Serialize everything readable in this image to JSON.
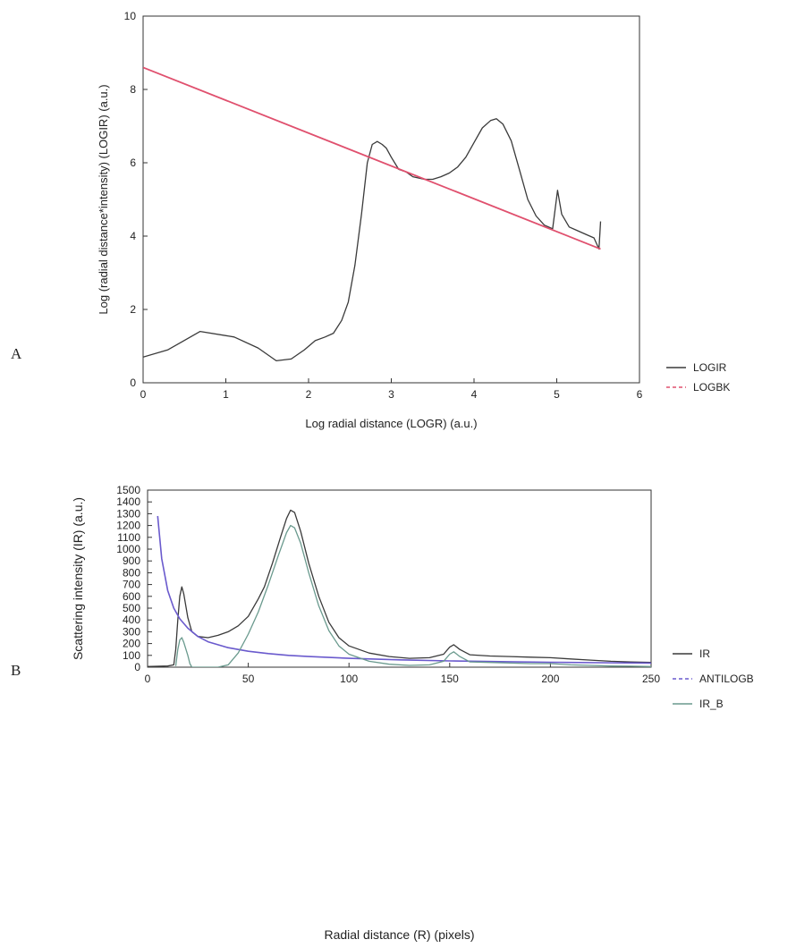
{
  "panels": {
    "a_letter": "A",
    "b_letter": "B"
  },
  "chart_data": [
    {
      "type": "line",
      "xlabel": "Log radial distance (LOGR) (a.u.)",
      "ylabel": "Log (radial distance*intensity) (LOGIR) (a.u.)",
      "xlim": [
        0,
        6
      ],
      "ylim": [
        0,
        10
      ],
      "xticks": [
        0,
        1,
        2,
        3,
        4,
        5,
        6
      ],
      "yticks": [
        0,
        2,
        4,
        6,
        8,
        10
      ],
      "grid": false,
      "legend_position": "right-bottom outside",
      "series": [
        {
          "name": "LOGIR",
          "color": "#3a3a3a",
          "style": "solid",
          "points": [
            [
              0,
              0.7
            ],
            [
              0.3,
              0.9
            ],
            [
              0.69,
              1.4
            ],
            [
              1.1,
              1.25
            ],
            [
              1.39,
              0.95
            ],
            [
              1.61,
              0.6
            ],
            [
              1.79,
              0.65
            ],
            [
              1.95,
              0.9
            ],
            [
              2.08,
              1.15
            ],
            [
              2.2,
              1.25
            ],
            [
              2.3,
              1.35
            ],
            [
              2.4,
              1.7
            ],
            [
              2.48,
              2.2
            ],
            [
              2.56,
              3.2
            ],
            [
              2.64,
              4.6
            ],
            [
              2.71,
              6.0
            ],
            [
              2.77,
              6.5
            ],
            [
              2.83,
              6.58
            ],
            [
              2.89,
              6.5
            ],
            [
              2.94,
              6.4
            ],
            [
              3.0,
              6.15
            ],
            [
              3.09,
              5.82
            ],
            [
              3.18,
              5.75
            ],
            [
              3.26,
              5.62
            ],
            [
              3.4,
              5.55
            ],
            [
              3.5,
              5.55
            ],
            [
              3.6,
              5.62
            ],
            [
              3.7,
              5.72
            ],
            [
              3.8,
              5.88
            ],
            [
              3.9,
              6.15
            ],
            [
              4.0,
              6.55
            ],
            [
              4.1,
              6.95
            ],
            [
              4.2,
              7.15
            ],
            [
              4.27,
              7.2
            ],
            [
              4.35,
              7.05
            ],
            [
              4.45,
              6.6
            ],
            [
              4.55,
              5.8
            ],
            [
              4.65,
              5.0
            ],
            [
              4.75,
              4.55
            ],
            [
              4.85,
              4.3
            ],
            [
              4.95,
              4.2
            ],
            [
              5.01,
              5.25
            ],
            [
              5.06,
              4.6
            ],
            [
              5.15,
              4.25
            ],
            [
              5.25,
              4.15
            ],
            [
              5.35,
              4.05
            ],
            [
              5.45,
              3.95
            ],
            [
              5.51,
              3.65
            ],
            [
              5.53,
              4.4
            ]
          ]
        },
        {
          "name": "LOGBK",
          "color": "#e0506e",
          "style": "dashed",
          "points": [
            [
              0,
              8.6
            ],
            [
              5.53,
              3.65
            ]
          ]
        }
      ]
    },
    {
      "type": "line",
      "xlabel": "Radial distance (R) (pixels)",
      "ylabel": "Scattering intensity (IR) (a.u.)",
      "xlim": [
        0,
        250
      ],
      "ylim": [
        0,
        1500
      ],
      "xticks": [
        0,
        50,
        100,
        150,
        200,
        250
      ],
      "yticks": [
        0,
        100,
        200,
        300,
        400,
        500,
        600,
        700,
        800,
        900,
        1000,
        1100,
        1200,
        1300,
        1400,
        1500
      ],
      "grid": false,
      "legend_position": "right-bottom outside",
      "series": [
        {
          "name": "IR",
          "color": "#3a3a3a",
          "style": "solid",
          "points": [
            [
              0,
              5
            ],
            [
              10,
              10
            ],
            [
              13,
              20
            ],
            [
              14,
              150
            ],
            [
              15,
              400
            ],
            [
              16,
              600
            ],
            [
              17,
              680
            ],
            [
              18,
              620
            ],
            [
              20,
              420
            ],
            [
              22,
              300
            ],
            [
              25,
              260
            ],
            [
              30,
              250
            ],
            [
              35,
              270
            ],
            [
              40,
              300
            ],
            [
              45,
              350
            ],
            [
              50,
              430
            ],
            [
              55,
              580
            ],
            [
              58,
              680
            ],
            [
              62,
              880
            ],
            [
              66,
              1100
            ],
            [
              69,
              1260
            ],
            [
              71,
              1330
            ],
            [
              73,
              1310
            ],
            [
              76,
              1150
            ],
            [
              80,
              880
            ],
            [
              85,
              600
            ],
            [
              90,
              380
            ],
            [
              95,
              250
            ],
            [
              100,
              180
            ],
            [
              110,
              120
            ],
            [
              120,
              90
            ],
            [
              130,
              75
            ],
            [
              140,
              80
            ],
            [
              147,
              110
            ],
            [
              150,
              170
            ],
            [
              152,
              190
            ],
            [
              155,
              150
            ],
            [
              160,
              105
            ],
            [
              170,
              95
            ],
            [
              180,
              90
            ],
            [
              190,
              85
            ],
            [
              200,
              80
            ],
            [
              210,
              70
            ],
            [
              220,
              60
            ],
            [
              230,
              50
            ],
            [
              240,
              45
            ],
            [
              250,
              40
            ]
          ]
        },
        {
          "name": "ANTILOGB",
          "color": "#6a5acd",
          "style": "dashed",
          "points": [
            [
              5,
              1280
            ],
            [
              7,
              920
            ],
            [
              10,
              650
            ],
            [
              13,
              500
            ],
            [
              16,
              410
            ],
            [
              20,
              330
            ],
            [
              25,
              260
            ],
            [
              30,
              215
            ],
            [
              40,
              165
            ],
            [
              50,
              135
            ],
            [
              60,
              115
            ],
            [
              70,
              100
            ],
            [
              80,
              90
            ],
            [
              100,
              75
            ],
            [
              125,
              62
            ],
            [
              150,
              53
            ],
            [
              175,
              47
            ],
            [
              200,
              42
            ],
            [
              225,
              38
            ],
            [
              250,
              35
            ]
          ]
        },
        {
          "name": "IR_B",
          "color": "#6a9a8e",
          "style": "solid",
          "points": [
            [
              14,
              10
            ],
            [
              15,
              150
            ],
            [
              16,
              230
            ],
            [
              17,
              250
            ],
            [
              18,
              210
            ],
            [
              20,
              100
            ],
            [
              21,
              30
            ],
            [
              22,
              0
            ],
            [
              35,
              0
            ],
            [
              40,
              20
            ],
            [
              45,
              120
            ],
            [
              50,
              280
            ],
            [
              55,
              470
            ],
            [
              60,
              700
            ],
            [
              65,
              950
            ],
            [
              69,
              1140
            ],
            [
              71,
              1200
            ],
            [
              73,
              1180
            ],
            [
              76,
              1050
            ],
            [
              80,
              800
            ],
            [
              85,
              520
            ],
            [
              90,
              310
            ],
            [
              95,
              180
            ],
            [
              100,
              110
            ],
            [
              110,
              50
            ],
            [
              120,
              25
            ],
            [
              130,
              15
            ],
            [
              140,
              20
            ],
            [
              147,
              50
            ],
            [
              150,
              110
            ],
            [
              152,
              130
            ],
            [
              155,
              90
            ],
            [
              160,
              45
            ],
            [
              170,
              40
            ],
            [
              180,
              35
            ],
            [
              190,
              30
            ],
            [
              200,
              30
            ],
            [
              210,
              20
            ],
            [
              220,
              15
            ],
            [
              230,
              10
            ],
            [
              240,
              8
            ],
            [
              250,
              5
            ]
          ]
        }
      ]
    }
  ]
}
